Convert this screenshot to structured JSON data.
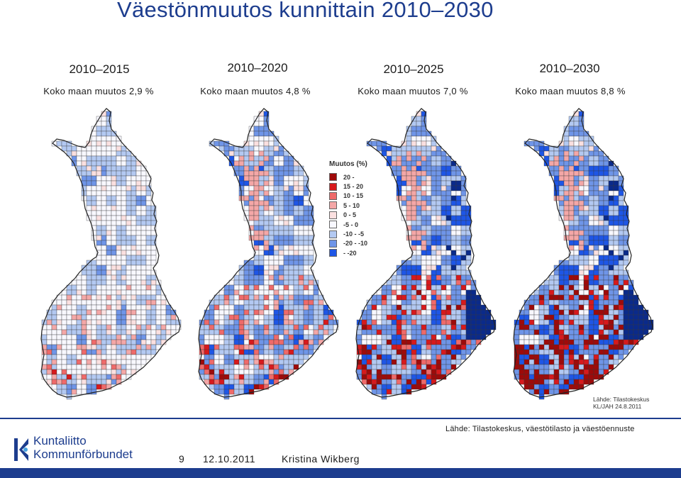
{
  "title": "Väestönmuutos kunnittain 2010–2030",
  "panels": [
    {
      "period": "2010–2015",
      "change": "Koko maan muutos 2,9 %",
      "weights": [
        0.55,
        0.35,
        0.1,
        0.0
      ]
    },
    {
      "period": "2010–2020",
      "change": "Koko maan muutos 4,8 %",
      "weights": [
        0.22,
        0.38,
        0.3,
        0.1
      ]
    },
    {
      "period": "2010–2025",
      "change": "Koko maan muutos 7,0 %",
      "weights": [
        0.12,
        0.3,
        0.4,
        0.18
      ]
    },
    {
      "period": "2010–2030",
      "change": "Koko maan muutos 8,8 %",
      "weights": [
        0.08,
        0.25,
        0.42,
        0.25
      ]
    }
  ],
  "legend": {
    "title": "Muutos (%)",
    "items": [
      {
        "label": "20 -",
        "color": "#9e0a0a"
      },
      {
        "label": "15 - 20",
        "color": "#d7191c"
      },
      {
        "label": "10 - 15",
        "color": "#ef6a6a"
      },
      {
        "label": "5 - 10",
        "color": "#f4a7a7"
      },
      {
        "label": "0 - 5",
        "color": "#fbe0e0"
      },
      {
        "label": "-5 - 0",
        "color": "#f8f8ff"
      },
      {
        "label": "-10 - -5",
        "color": "#b3c9f2"
      },
      {
        "label": "-20 - -10",
        "color": "#6f95e8"
      },
      {
        "label": "- -20",
        "color": "#1e56e6"
      }
    ],
    "extra_color": "#0a2a8a"
  },
  "source_small": {
    "line1": "Lähde: Tilastokeskus",
    "line2": "KL/JAH 24.8.2011"
  },
  "source_main": "Lähde: Tilastokeskus, väestötilasto ja väestöennuste",
  "logo": {
    "line1": "Kuntaliitto",
    "line2": "Kommunförbundet",
    "color": "#1d3d8e"
  },
  "footer": {
    "page": "9",
    "date": "12.10.2011",
    "author": "Kristina Wikberg"
  }
}
